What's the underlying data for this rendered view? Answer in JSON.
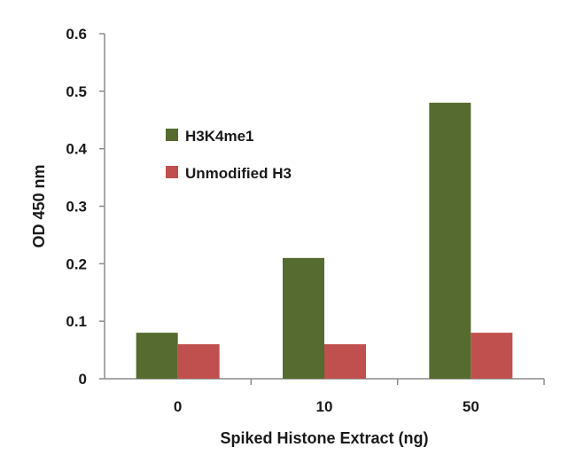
{
  "chart_data": {
    "type": "bar",
    "title": "",
    "xlabel": "Spiked Histone Extract (ng)",
    "ylabel": "OD 450 nm",
    "categories": [
      "0",
      "10",
      "50"
    ],
    "ylim": [
      0,
      0.6
    ],
    "yticks": [
      "0",
      "0.1",
      "0.2",
      "0.3",
      "0.4",
      "0.5",
      "0.6"
    ],
    "grid": false,
    "legend_position": "upper-left",
    "series": [
      {
        "name": "H3K4me1",
        "color": "#556b2f",
        "values": [
          0.08,
          0.21,
          0.48
        ]
      },
      {
        "name": "Unmodified H3",
        "color": "#c0504d",
        "values": [
          0.06,
          0.06,
          0.08
        ]
      }
    ]
  }
}
